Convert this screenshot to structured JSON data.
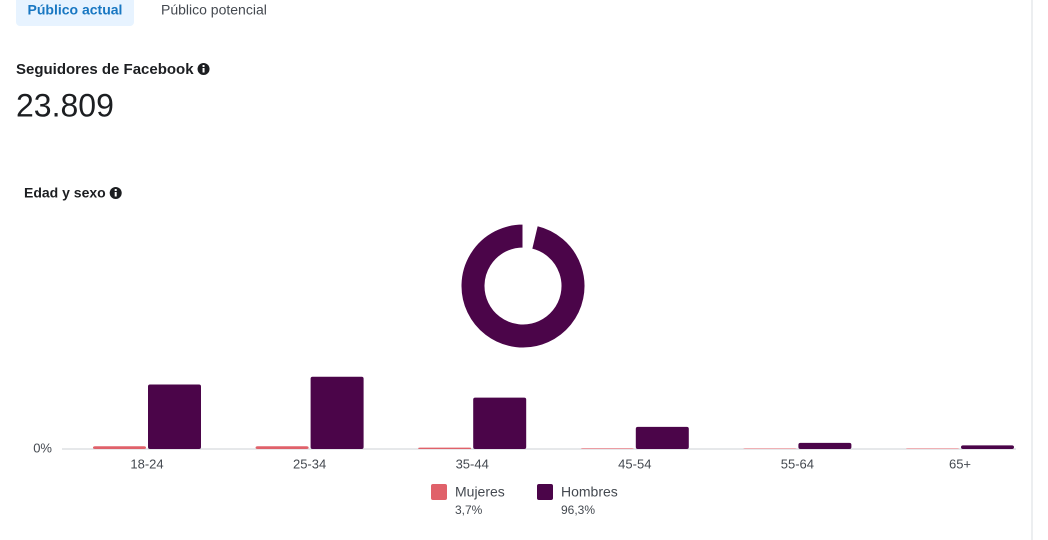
{
  "tabs": [
    "Público actual",
    "Público potencial"
  ],
  "followers": {
    "title": "Seguidores de Facebook",
    "value": "23.809"
  },
  "section_title": "Edad y sexo",
  "chart_data": [
    {
      "type": "pie",
      "values": [
        3.7,
        96.3
      ],
      "value_labels": [
        "3,7%",
        "96,3%"
      ],
      "colors": [
        "#e0616a",
        "#4b0549"
      ]
    },
    {
      "type": "bar",
      "categories": [
        "18-24",
        "25-34",
        "35-44",
        "45-54",
        "55-64",
        "65+"
      ],
      "series": [
        {
          "name": "Mujeres",
          "color": "#e0616a",
          "values": [
            1.2,
            1.2,
            0.6,
            0.3,
            0.2,
            0.2
          ]
        },
        {
          "name": "Hombres",
          "color": "#4b0549",
          "values": [
            28.2,
            31.6,
            22.5,
            9.7,
            2.7,
            1.6
          ]
        }
      ],
      "ylim": [
        0,
        35
      ],
      "yticks": [
        {
          "value": 0,
          "label": "0%"
        }
      ]
    }
  ]
}
